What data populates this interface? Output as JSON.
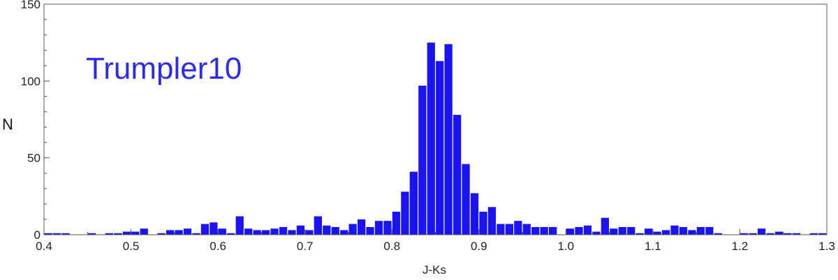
{
  "chart_data": {
    "type": "bar",
    "title": "",
    "annotation": "Trumpler10",
    "xlabel": "J-Ks",
    "ylabel": "N",
    "xlim": [
      0.4,
      1.3
    ],
    "ylim": [
      0,
      150
    ],
    "bin_width": 0.01,
    "grid": false,
    "bar_color": "#1a14f2",
    "annotation_color": "#2b2bf0",
    "x_ticks": [
      "0.4",
      "0.5",
      "0.6",
      "0.7",
      "0.8",
      "0.9",
      "1.0",
      "1.1",
      "1.2",
      "1.3"
    ],
    "y_ticks": [
      "0",
      "50",
      "100",
      "150"
    ],
    "bins_left_edge": [
      0.4,
      0.41,
      0.42,
      0.43,
      0.44,
      0.45,
      0.46,
      0.47,
      0.48,
      0.49,
      0.5,
      0.51,
      0.52,
      0.53,
      0.54,
      0.55,
      0.56,
      0.57,
      0.58,
      0.59,
      0.6,
      0.61,
      0.62,
      0.63,
      0.64,
      0.65,
      0.66,
      0.67,
      0.68,
      0.69,
      0.7,
      0.71,
      0.72,
      0.73,
      0.74,
      0.75,
      0.76,
      0.77,
      0.78,
      0.79,
      0.8,
      0.81,
      0.82,
      0.83,
      0.84,
      0.85,
      0.86,
      0.87,
      0.88,
      0.89,
      0.9,
      0.91,
      0.92,
      0.93,
      0.94,
      0.95,
      0.96,
      0.97,
      0.98,
      0.99,
      1.0,
      1.01,
      1.02,
      1.03,
      1.04,
      1.05,
      1.06,
      1.07,
      1.08,
      1.09,
      1.1,
      1.11,
      1.12,
      1.13,
      1.14,
      1.15,
      1.16,
      1.17,
      1.18,
      1.19,
      1.2,
      1.21,
      1.22,
      1.23,
      1.24,
      1.25,
      1.26,
      1.27,
      1.28,
      1.29
    ],
    "values": [
      1,
      1,
      1,
      0,
      0,
      1,
      0,
      1,
      1,
      2,
      2,
      4,
      0,
      1,
      3,
      3,
      4,
      1,
      7,
      8,
      4,
      1,
      12,
      4,
      3,
      3,
      4,
      5,
      3,
      6,
      3,
      12,
      6,
      5,
      3,
      7,
      10,
      5,
      9,
      9,
      15,
      28,
      41,
      97,
      125,
      113,
      124,
      78,
      46,
      27,
      15,
      18,
      7,
      7,
      9,
      7,
      5,
      5,
      5,
      0,
      4,
      5,
      6,
      2,
      11,
      4,
      5,
      5,
      1,
      4,
      2,
      3,
      6,
      5,
      3,
      5,
      5,
      1,
      0,
      0,
      1,
      1,
      4,
      1,
      2,
      1,
      1,
      0,
      1,
      1
    ]
  }
}
